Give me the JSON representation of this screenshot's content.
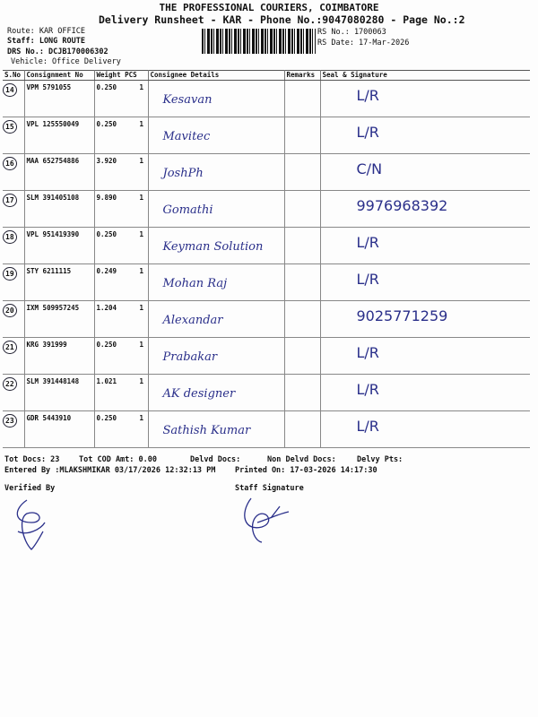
{
  "header": {
    "company": "THE PROFESSIONAL COURIERS, COIMBATORE",
    "title": "Delivery Runsheet - KAR - Phone No.:9047080280 - Page No.:2",
    "route": "Route: KAR OFFICE",
    "staff": "Staff: LONG ROUTE",
    "drs": "DRS No.: DCJB170006302",
    "vehicle": "Vehicle: Office Delivery",
    "rs_no": "RS No.: 1700063",
    "rs_date": "RS Date: 17-Mar-2026"
  },
  "columns": [
    "S.No",
    "Consignment No",
    "Weight  PCS",
    "Consignee Details",
    "Remarks",
    "Seal & Signature"
  ],
  "rows": [
    {
      "sno": "14",
      "cn": "VPM 5791055",
      "weight": "0.250",
      "pcs": "1",
      "consignee": "Kesavan",
      "seal": "L/R"
    },
    {
      "sno": "15",
      "cn": "VPL 125550049",
      "weight": "0.250",
      "pcs": "1",
      "consignee": "Mavitec",
      "seal": "L/R"
    },
    {
      "sno": "16",
      "cn": "MAA 652754886",
      "weight": "3.920",
      "pcs": "1",
      "consignee": "JoshPh",
      "seal": "C/N"
    },
    {
      "sno": "17",
      "cn": "SLM 391405108",
      "weight": "9.890",
      "pcs": "1",
      "consignee": "Gomathi",
      "seal": "9976968392"
    },
    {
      "sno": "18",
      "cn": "VPL 951419390",
      "weight": "0.250",
      "pcs": "1",
      "consignee": "Keyman Solution",
      "seal": "L/R"
    },
    {
      "sno": "19",
      "cn": "STY 6211115",
      "weight": "0.249",
      "pcs": "1",
      "consignee": "Mohan Raj",
      "seal": "L/R"
    },
    {
      "sno": "20",
      "cn": "IXM 509957245",
      "weight": "1.204",
      "pcs": "1",
      "consignee": "Alexandar",
      "seal": "9025771259"
    },
    {
      "sno": "21",
      "cn": "KRG 391999",
      "weight": "0.250",
      "pcs": "1",
      "consignee": "Prabakar",
      "seal": "L/R"
    },
    {
      "sno": "22",
      "cn": "SLM 391448148",
      "weight": "1.021",
      "pcs": "1",
      "consignee": "AK designer",
      "seal": "L/R"
    },
    {
      "sno": "23",
      "cn": "GDR 5443910",
      "weight": "0.250",
      "pcs": "1",
      "consignee": "Sathish Kumar",
      "seal": "L/R"
    }
  ],
  "footer": {
    "tot_docs": "Tot Docs:  23",
    "tot_cod": "Tot COD Amt:    0.00",
    "delvd": "Delvd Docs:",
    "non_delvd": "Non Delvd Docs:",
    "delvy_pts": "Delvy Pts:",
    "entered": "Entered By :MLAKSHMIKAR 03/17/2026 12:32:13 PM",
    "printed": "Printed On: 17-03-2026 14:17:30",
    "verified": "Verified By",
    "staff_sig": "Staff Signature"
  },
  "colors": {
    "ink": "#2a2f8a"
  }
}
